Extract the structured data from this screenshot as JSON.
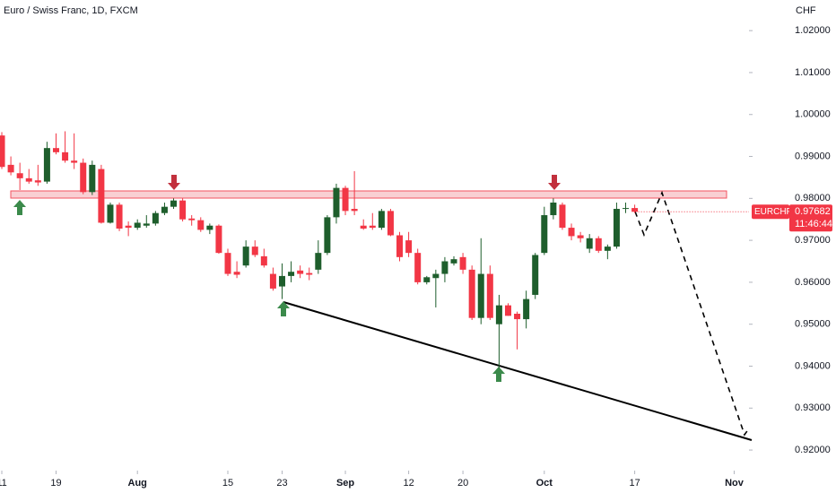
{
  "chart_data": {
    "type": "candlestick",
    "title": "Euro / Swiss Franc, 1D, FXCM",
    "currency": "CHF",
    "up_color": "#1e5e2c",
    "down_color": "#f23645",
    "open": [
      0.995,
      0.988,
      0.986,
      0.9848,
      0.9843,
      0.984,
      0.992,
      0.991,
      0.989,
      0.9885,
      0.9815,
      0.987,
      0.9742,
      0.9785,
      0.9735,
      0.973,
      0.9735,
      0.974,
      0.9765,
      0.978,
      0.9795,
      0.9752,
      0.9748,
      0.9725,
      0.9735,
      0.967,
      0.9625,
      0.964,
      0.9685,
      0.9662,
      0.962,
      0.959,
      0.9615,
      0.9628,
      0.9622,
      0.963,
      0.967,
      0.9755,
      0.9825,
      0.9775,
      0.9735,
      0.9735,
      0.973,
      0.977,
      0.9712,
      0.97,
      0.967,
      0.96,
      0.961,
      0.962,
      0.9645,
      0.966,
      0.963,
      0.9515,
      0.962,
      0.95,
      0.9545,
      0.9525,
      0.9512,
      0.957,
      0.967,
      0.976,
      0.9785,
      0.973,
      0.9712,
      0.968,
      0.9705,
      0.9675,
      0.9685,
      0.9775,
      0.9777
    ],
    "high": [
      0.9958,
      0.99,
      0.9885,
      0.987,
      0.988,
      0.9935,
      0.9955,
      0.996,
      0.9955,
      0.9895,
      0.989,
      0.988,
      0.979,
      0.979,
      0.9745,
      0.975,
      0.976,
      0.977,
      0.979,
      0.98,
      0.98,
      0.976,
      0.9755,
      0.974,
      0.9738,
      0.968,
      0.965,
      0.97,
      0.97,
      0.968,
      0.9635,
      0.9645,
      0.965,
      0.964,
      0.9635,
      0.97,
      0.976,
      0.9835,
      0.983,
      0.9865,
      0.975,
      0.9765,
      0.9775,
      0.9775,
      0.972,
      0.972,
      0.968,
      0.9615,
      0.963,
      0.966,
      0.9662,
      0.967,
      0.964,
      0.9705,
      0.964,
      0.957,
      0.955,
      0.953,
      0.958,
      0.967,
      0.978,
      0.98,
      0.979,
      0.974,
      0.972,
      0.9715,
      0.971,
      0.969,
      0.979,
      0.979,
      0.9785
    ],
    "low": [
      0.987,
      0.9855,
      0.982,
      0.9835,
      0.983,
      0.9835,
      0.9905,
      0.9885,
      0.987,
      0.981,
      0.9808,
      0.974,
      0.974,
      0.9722,
      0.971,
      0.9725,
      0.973,
      0.9735,
      0.976,
      0.9775,
      0.9745,
      0.9735,
      0.972,
      0.9715,
      0.9668,
      0.9615,
      0.961,
      0.9635,
      0.966,
      0.9635,
      0.958,
      0.956,
      0.96,
      0.961,
      0.9605,
      0.962,
      0.9665,
      0.974,
      0.976,
      0.976,
      0.9725,
      0.9725,
      0.9725,
      0.971,
      0.965,
      0.966,
      0.9595,
      0.9595,
      0.954,
      0.96,
      0.964,
      0.962,
      0.951,
      0.95,
      0.951,
      0.9395,
      0.952,
      0.944,
      0.949,
      0.956,
      0.9665,
      0.975,
      0.9725,
      0.97,
      0.9695,
      0.967,
      0.967,
      0.9655,
      0.968,
      0.9765,
      0.9765
    ],
    "close": [
      0.9875,
      0.9862,
      0.9848,
      0.984,
      0.9838,
      0.992,
      0.991,
      0.989,
      0.9885,
      0.9815,
      0.988,
      0.9742,
      0.9785,
      0.9728,
      0.973,
      0.9742,
      0.974,
      0.9765,
      0.978,
      0.9795,
      0.975,
      0.9748,
      0.9725,
      0.9735,
      0.967,
      0.962,
      0.9618,
      0.9685,
      0.9665,
      0.964,
      0.9585,
      0.9615,
      0.9625,
      0.962,
      0.9618,
      0.967,
      0.9755,
      0.9825,
      0.977,
      0.977,
      0.9728,
      0.973,
      0.977,
      0.9712,
      0.966,
      0.967,
      0.96,
      0.9612,
      0.962,
      0.965,
      0.9655,
      0.963,
      0.9515,
      0.962,
      0.9515,
      0.9545,
      0.952,
      0.9512,
      0.956,
      0.9665,
      0.976,
      0.979,
      0.973,
      0.971,
      0.9705,
      0.9705,
      0.9675,
      0.9685,
      0.9775,
      0.9777,
      0.9768
    ],
    "xlim": [
      -0.2,
      82.64
    ],
    "xticks": [
      {
        "value": 0,
        "label": "11"
      },
      {
        "value": 6,
        "label": "19"
      },
      {
        "value": 15,
        "label": "Aug"
      },
      {
        "value": 25,
        "label": "15"
      },
      {
        "value": 31,
        "label": "23"
      },
      {
        "value": 38,
        "label": "Sep"
      },
      {
        "value": 45,
        "label": "12"
      },
      {
        "value": 51,
        "label": "20"
      },
      {
        "value": 60,
        "label": "Oct"
      },
      {
        "value": 70,
        "label": "17"
      },
      {
        "value": 81,
        "label": "Nov"
      }
    ],
    "ylim": [
      0.9151,
      1.0273
    ],
    "yticks": [
      {
        "value": 1.02,
        "label": "1.02000"
      },
      {
        "value": 1.01,
        "label": "1.01000"
      },
      {
        "value": 1.0,
        "label": "1.00000"
      },
      {
        "value": 0.99,
        "label": "0.99000"
      },
      {
        "value": 0.98,
        "label": "0.98000"
      },
      {
        "value": 0.97,
        "label": "0.97000"
      },
      {
        "value": 0.96,
        "label": "0.96000"
      },
      {
        "value": 0.95,
        "label": "0.95000"
      },
      {
        "value": 0.94,
        "label": "0.94000"
      },
      {
        "value": 0.93,
        "label": "0.93000"
      },
      {
        "value": 0.92,
        "label": "0.92000"
      }
    ],
    "last_price": {
      "symbol": "EURCHF",
      "value": 0.97682,
      "countdown": "11:46:44"
    }
  }
}
